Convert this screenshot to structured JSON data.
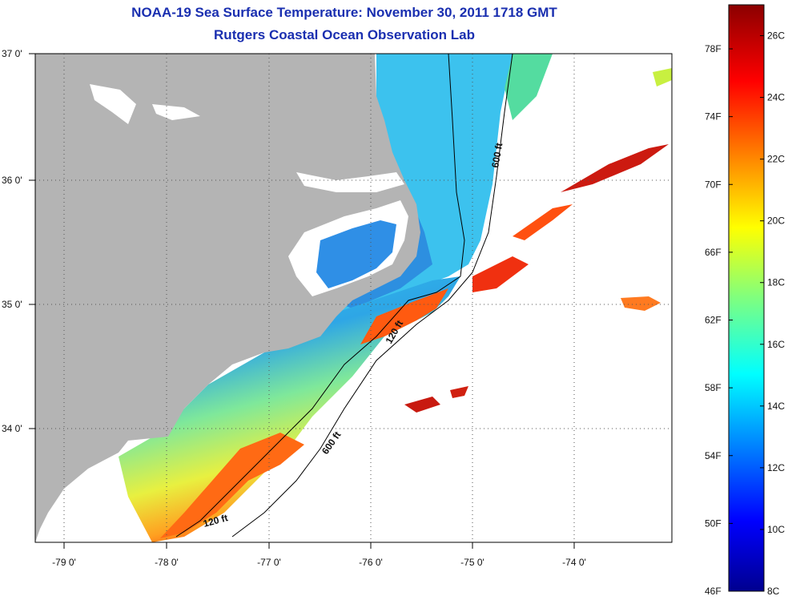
{
  "title": {
    "line1": "NOAA-19 Sea Surface Temperature:  November 30, 2011 1718 GMT",
    "line2": "Rutgers Coastal Ocean Observation Lab"
  },
  "axes": {
    "lat_labels": [
      "37 0'",
      "36 0'",
      "35 0'",
      "34 0'"
    ],
    "lon_labels": [
      "-79 0'",
      "-78 0'",
      "-77 0'",
      "-76 0'",
      "-75 0'",
      "-74 0'"
    ]
  },
  "contours": {
    "label_600_north": "600 ft",
    "label_120_mid": "120 ft",
    "label_600_south": "600 ft",
    "label_120_south": "120 ft"
  },
  "colorbar": {
    "fahrenheit": [
      "78F",
      "74F",
      "70F",
      "66F",
      "62F",
      "58F",
      "54F",
      "50F",
      "46F"
    ],
    "celsius": [
      "26C",
      "24C",
      "22C",
      "20C",
      "18C",
      "16C",
      "14C",
      "12C",
      "10C",
      "8C"
    ]
  },
  "colors": {
    "land": "#b4b4b4",
    "title": "#1a2fb0",
    "cold": "#00008f",
    "warm": "#8b0000"
  }
}
